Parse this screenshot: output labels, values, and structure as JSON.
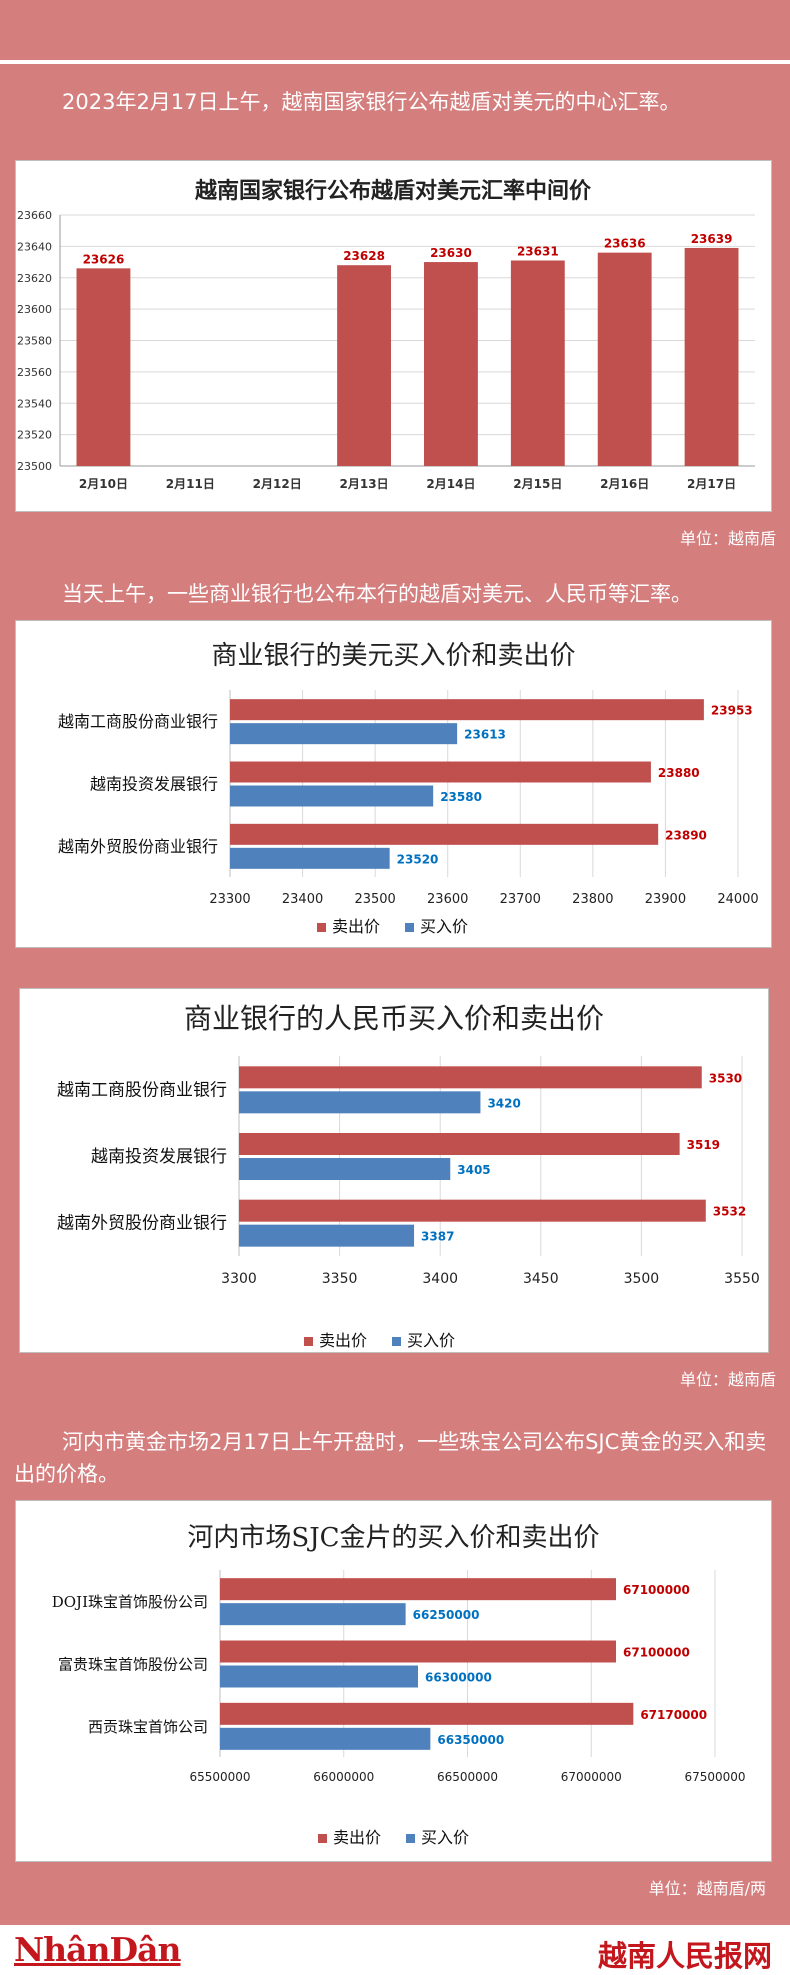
{
  "intro_text": "2023年2月17日上午，越南国家银行公布越盾对美元的中心汇率。",
  "para2": "当天上午，一些商业银行也公布本行的越盾对美元、人民币等汇率。",
  "para3": "河内市黄金市场2月17日上午开盘时，一些珠宝公司公布SJC黄金的买入和卖出的价格。",
  "unit1": "单位：越南盾",
  "unit2": "单位：越南盾",
  "unit3": "单位：越南盾/两",
  "footer": {
    "left_logo": "NhânDân",
    "right_logo": "越南人民报网"
  },
  "colors": {
    "sell": "#c0504d",
    "buy": "#4f81bd",
    "sell_label": "#c00000",
    "buy_label": "#0070c0"
  },
  "chart_data": [
    {
      "type": "bar",
      "title": "越南国家银行公布越盾对美元汇率中间价",
      "categories": [
        "2月10日",
        "2月11日",
        "2月12日",
        "2月13日",
        "2月14日",
        "2月15日",
        "2月16日",
        "2月17日"
      ],
      "values": [
        23626,
        null,
        null,
        23628,
        23630,
        23631,
        23636,
        23639
      ],
      "ylim": [
        23500,
        23660
      ],
      "yticks": [
        23500,
        23520,
        23540,
        23560,
        23580,
        23600,
        23620,
        23640,
        23660
      ],
      "grid": true
    },
    {
      "type": "bar",
      "orientation": "horizontal",
      "title": "商业银行的美元买入价和卖出价",
      "categories": [
        "越南工商股份商业银行",
        "越南投资发展银行",
        "越南外贸股份商业银行"
      ],
      "series": [
        {
          "name": "卖出价",
          "values": [
            23953,
            23880,
            23890
          ]
        },
        {
          "name": "买入价",
          "values": [
            23613,
            23580,
            23520
          ]
        }
      ],
      "xlim": [
        23300,
        24000
      ],
      "xticks": [
        23300,
        23400,
        23500,
        23600,
        23700,
        23800,
        23900,
        24000
      ],
      "legend": "bottom",
      "grid": true
    },
    {
      "type": "bar",
      "orientation": "horizontal",
      "title": "商业银行的人民币买入价和卖出价",
      "categories": [
        "越南工商股份商业银行",
        "越南投资发展银行",
        "越南外贸股份商业银行"
      ],
      "series": [
        {
          "name": "卖出价",
          "values": [
            3530,
            3519,
            3532
          ]
        },
        {
          "name": "买入价",
          "values": [
            3420,
            3405,
            3387
          ]
        }
      ],
      "xlim": [
        3300,
        3550
      ],
      "xticks": [
        3300,
        3350,
        3400,
        3450,
        3500,
        3550
      ],
      "legend": "bottom",
      "grid": true
    },
    {
      "type": "bar",
      "orientation": "horizontal",
      "title": "河内市场SJC金片的买入价和卖出价",
      "categories": [
        "DOJI珠宝首饰股份公司",
        "富贵珠宝首饰股份公司",
        "西贡珠宝首饰公司"
      ],
      "series": [
        {
          "name": "卖出价",
          "values": [
            67100000,
            67100000,
            67170000
          ]
        },
        {
          "name": "买入价",
          "values": [
            66250000,
            66300000,
            66350000
          ]
        }
      ],
      "xlim": [
        65500000,
        67500000
      ],
      "xticks": [
        65500000,
        66000000,
        66500000,
        67000000,
        67500000
      ],
      "legend": "bottom",
      "grid": true
    }
  ]
}
